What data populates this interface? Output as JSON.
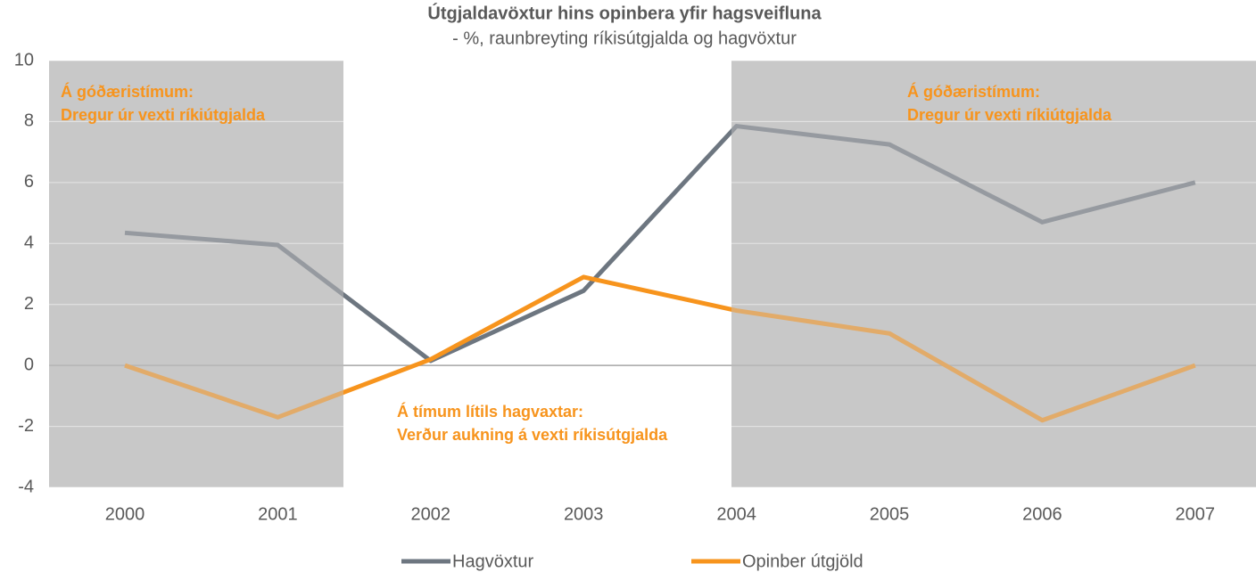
{
  "chart_data": {
    "type": "line",
    "title": "Útgjaldavöxtur hins opinbera yfir hagsveifluna",
    "subtitle": "- %, raunbreyting  ríkisútgjalda  og hagvöxtur",
    "categories": [
      "2000",
      "2001",
      "2002",
      "2003",
      "2004",
      "2005",
      "2006",
      "2007"
    ],
    "series": [
      {
        "name": "Hagvöxtur",
        "color": "#6d7680",
        "values": [
          4.35,
          3.95,
          0.15,
          2.45,
          7.85,
          7.25,
          4.7,
          6.0
        ]
      },
      {
        "name": "Opinber útgjöld",
        "color": "#f7941d",
        "values": [
          0,
          -1.7,
          0.2,
          2.9,
          1.8,
          1.05,
          -1.8,
          0.0
        ]
      }
    ],
    "ylim": [
      -4,
      10
    ],
    "yticks": [
      -4,
      -2,
      0,
      2,
      4,
      6,
      8,
      10
    ],
    "grid": true,
    "legend": "bottom",
    "annotations": [
      {
        "lines": [
          "Á góðæristímum:",
          "Dregur úr vexti ríkiútgjalda"
        ]
      },
      {
        "lines": [
          "Á góðæristímum:",
          "Dregur úr vexti ríkiútgjalda"
        ]
      },
      {
        "lines": [
          "Á tímum lítils hagvaxtar:",
          "Verður aukning á vexti ríkisútgjalda"
        ]
      }
    ]
  }
}
